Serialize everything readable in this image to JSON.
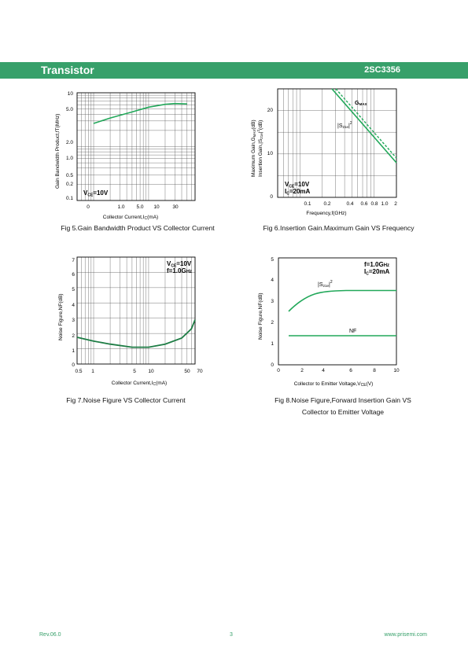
{
  "header": {
    "title": "Transistor",
    "part_number": "2SC3356"
  },
  "footer": {
    "revision": "Rev.06.0",
    "page": "3",
    "website": "www.prisemi.com"
  },
  "colors": {
    "accent": "#37a06a",
    "curve": "#22a85a"
  },
  "charts": [
    {
      "caption": "Fig 5.Gain Bandwidth Product VS Collector Current",
      "ylabel": "Gain Bandwidth Product,fT(MHz)",
      "xlabel": "Collector Current,I_C(mA)",
      "annotation": "V_CE=10V"
    },
    {
      "caption": "Fig 6.Insertion Gain.Maximum Gain VS Frequency",
      "ylabel_1": "Maximum Gain,G_MAX(dB)",
      "ylabel_2": "Insertion Gain,|S21e|²(dB)",
      "xlabel": "Frequency,f(GHz)",
      "annotation_1": "V_CE=10V",
      "annotation_2": "I_C=20mA",
      "series_labels": [
        "G_MAX",
        "|S21e|²"
      ]
    },
    {
      "caption": "Fig 7.Noise Figure VS Collector Current",
      "ylabel": "Noise Figure,NF(dB)",
      "xlabel": "Collector Current,I_C(mA)",
      "annotation_1": "V_CE=10V",
      "annotation_2": "f=1.0GHz"
    },
    {
      "caption_line1": "Fig 8.Noise Figure,Forward Insertion Gain VS",
      "caption_line2": "Collector to Emitter Voltage",
      "ylabel": "Noise Figure,NF(dB)",
      "xlabel": "Collector to Emitter Voltage,V_CE(V)",
      "annotation_1": "f=1.0GHz",
      "annotation_2": "I_C=20mA",
      "series_labels": [
        "|S21e|²",
        "NF"
      ]
    }
  ],
  "chart_data": [
    {
      "type": "line",
      "title": "Fig 5.Gain Bandwidth Product VS Collector Current",
      "xlabel": "Collector Current,IC(mA)",
      "ylabel": "Gain Bandwidth Product,fT(MHz)",
      "x_scale": "log",
      "y_scale": "log",
      "xlim": [
        0.5,
        70
      ],
      "ylim": [
        0.1,
        10
      ],
      "x_ticks": [
        "0",
        "1.0",
        "5.0",
        "10",
        "30"
      ],
      "y_ticks": [
        "0.1",
        "0.2",
        "0.5",
        "1.0",
        "2.0",
        "5.0",
        "10"
      ],
      "grid": true,
      "series": [
        {
          "x": [
            1,
            2,
            5,
            10,
            20,
            30,
            50
          ],
          "values": [
            2.7,
            3.4,
            4.4,
            5.4,
            6.1,
            6.3,
            6.2
          ]
        }
      ]
    },
    {
      "type": "line",
      "title": "Fig 6.Insertion Gain.Maximum Gain VS Frequency",
      "xlabel": "Frequency,f(GHz)",
      "x_scale": "log",
      "xlim": [
        0.05,
        2
      ],
      "ylim": [
        0,
        25
      ],
      "x_ticks": [
        "0.1",
        "0.2",
        "0.4",
        "0.6",
        "0.8",
        "1.0",
        "2"
      ],
      "y_ticks": [
        "0",
        "10",
        "20"
      ],
      "grid": true,
      "series": [
        {
          "name": "GMAX",
          "x": [
            0.2,
            2
          ],
          "values": [
            25,
            8
          ]
        },
        {
          "name": "|S21e|²",
          "x": [
            0.2,
            2
          ],
          "values": [
            25,
            7.5
          ]
        }
      ]
    },
    {
      "type": "line",
      "title": "Fig 7.Noise Figure VS Collector Current",
      "xlabel": "Collector Current,IC(mA)",
      "ylabel": "Noise Figure,NF(dB)",
      "x_scale": "log",
      "xlim": [
        0.5,
        70
      ],
      "ylim": [
        0,
        7
      ],
      "x_ticks": [
        "0.5",
        "1",
        "5",
        "10",
        "50",
        "70"
      ],
      "y_ticks": [
        "0",
        "1",
        "2",
        "3",
        "4",
        "5",
        "6",
        "7"
      ],
      "grid": true,
      "series": [
        {
          "x": [
            0.5,
            1,
            2,
            5,
            10,
            20,
            40,
            60,
            70
          ],
          "values": [
            1.75,
            1.5,
            1.3,
            1.1,
            1.1,
            1.3,
            1.7,
            2.3,
            2.9
          ]
        }
      ]
    },
    {
      "type": "line",
      "title": "Fig 8.Noise Figure,Forward Insertion Gain VS Collector to Emitter Voltage",
      "xlabel": "Collector to Emitter Voltage,VCE(V)",
      "ylabel": "Noise Figure,NF(dB)",
      "xlim": [
        0,
        10
      ],
      "ylim": [
        0,
        5
      ],
      "x_ticks": [
        "0",
        "2",
        "4",
        "6",
        "8",
        "10"
      ],
      "y_ticks": [
        "0",
        "1",
        "2",
        "3",
        "4",
        "5"
      ],
      "grid": false,
      "series": [
        {
          "name": "|S21e|²",
          "x": [
            1,
            2,
            3,
            4,
            5,
            6,
            8,
            10
          ],
          "values": [
            2.55,
            3.1,
            3.4,
            3.5,
            3.55,
            3.55,
            3.55,
            3.55
          ]
        },
        {
          "name": "NF",
          "x": [
            1,
            10
          ],
          "values": [
            1.35,
            1.35
          ]
        }
      ]
    }
  ]
}
